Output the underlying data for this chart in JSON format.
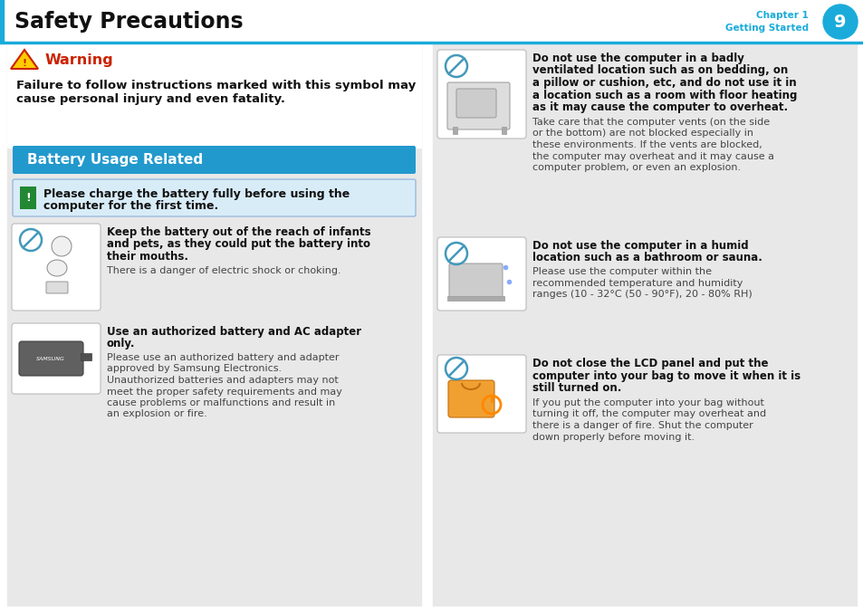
{
  "title": "Safety Precautions",
  "chapter_label": "Chapter 1",
  "chapter_sub": "Getting Started",
  "chapter_num": "9",
  "bg_white": "#ffffff",
  "bg_panel": "#e8e8e8",
  "blue_accent": "#1aabda",
  "chapter_circle": "#1aabda",
  "warning_color": "#cc2200",
  "battery_banner_color": "#2299cc",
  "notice_bg": "#d8ecf8",
  "notice_border": "#99bbdd",
  "notice_icon_bg": "#228833",
  "text_dark": "#111111",
  "text_normal": "#444444",
  "warning_title": "Warning",
  "warning_body1": "Failure to follow instructions marked with this symbol may",
  "warning_body2": "cause personal injury and even fatality.",
  "battery_title": "Battery Usage Related",
  "notice_line1": "Please charge the battery fully before using the",
  "notice_line2": "computer for the first time.",
  "l_item1_bold": [
    "Keep the battery out of the reach of infants",
    "and pets, as they could put the battery into",
    "their mouths."
  ],
  "l_item1_norm": [
    "There is a danger of electric shock or choking."
  ],
  "l_item2_bold": [
    "Use an authorized battery and AC adapter",
    "only."
  ],
  "l_item2_norm": [
    "Please use an authorized battery and adapter",
    "approved by Samsung Electronics.",
    "Unauthorized batteries and adapters may not",
    "meet the proper safety requirements and may",
    "cause problems or malfunctions and result in",
    "an explosion or fire."
  ],
  "r_item1_bold": [
    "Do not use the computer in a badly",
    "ventilated location such as on bedding, on",
    "a pillow or cushion, etc, and do not use it in",
    "a location such as a room with floor heating",
    "as it may cause the computer to overheat."
  ],
  "r_item1_norm": [
    "Take care that the computer vents (on the side",
    "or the bottom) are not blocked especially in",
    "these environments. If the vents are blocked,",
    "the computer may overheat and it may cause a",
    "computer problem, or even an explosion."
  ],
  "r_item2_bold": [
    "Do not use the computer in a humid",
    "location such as a bathroom or sauna."
  ],
  "r_item2_norm": [
    "Please use the computer within the",
    "recommended temperature and humidity",
    "ranges (10 - 32°C (50 - 90°F), 20 - 80% RH)"
  ],
  "r_item3_bold": [
    "Do not close the LCD panel and put the",
    "computer into your bag to move it when it is",
    "still turned on."
  ],
  "r_item3_norm": [
    "If you put the computer into your bag without",
    "turning it off, the computer may overheat and",
    "there is a danger of fire. Shut the computer",
    "down properly before moving it."
  ]
}
